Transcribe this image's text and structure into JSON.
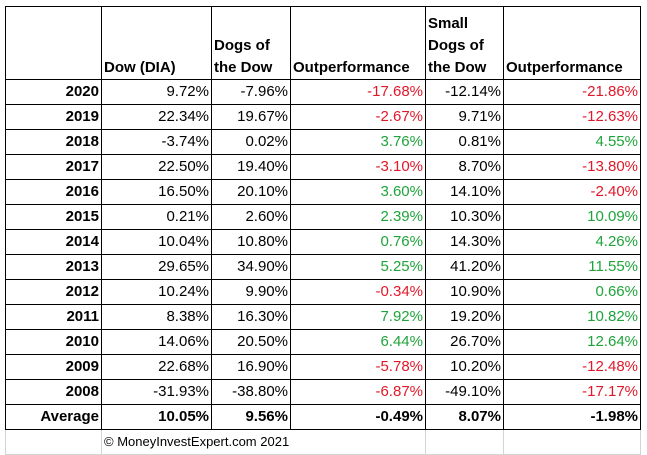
{
  "table": {
    "headers": [
      "",
      "Dow (DIA)",
      "Dogs of the Dow",
      "Outperformance",
      "Small Dogs of the Dow",
      "Outperformance"
    ],
    "header_lines": [
      [
        ""
      ],
      [
        "Dow (DIA)"
      ],
      [
        "Dogs of",
        "the Dow"
      ],
      [
        "Outperformance"
      ],
      [
        "Small",
        "Dogs of",
        "the Dow"
      ],
      [
        "Outperformance"
      ]
    ],
    "rows": [
      {
        "year": "2020",
        "dow": "9.72%",
        "dogs": "-7.96%",
        "out1": "-17.68%",
        "small": "-12.14%",
        "out2": "-21.86%"
      },
      {
        "year": "2019",
        "dow": "22.34%",
        "dogs": "19.67%",
        "out1": "-2.67%",
        "small": "9.71%",
        "out2": "-12.63%"
      },
      {
        "year": "2018",
        "dow": "-3.74%",
        "dogs": "0.02%",
        "out1": "3.76%",
        "small": "0.81%",
        "out2": "4.55%"
      },
      {
        "year": "2017",
        "dow": "22.50%",
        "dogs": "19.40%",
        "out1": "-3.10%",
        "small": "8.70%",
        "out2": "-13.80%"
      },
      {
        "year": "2016",
        "dow": "16.50%",
        "dogs": "20.10%",
        "out1": "3.60%",
        "small": "14.10%",
        "out2": "-2.40%"
      },
      {
        "year": "2015",
        "dow": "0.21%",
        "dogs": "2.60%",
        "out1": "2.39%",
        "small": "10.30%",
        "out2": "10.09%"
      },
      {
        "year": "2014",
        "dow": "10.04%",
        "dogs": "10.80%",
        "out1": "0.76%",
        "small": "14.30%",
        "out2": "4.26%"
      },
      {
        "year": "2013",
        "dow": "29.65%",
        "dogs": "34.90%",
        "out1": "5.25%",
        "small": "41.20%",
        "out2": "11.55%"
      },
      {
        "year": "2012",
        "dow": "10.24%",
        "dogs": "9.90%",
        "out1": "-0.34%",
        "small": "10.90%",
        "out2": "0.66%"
      },
      {
        "year": "2011",
        "dow": "8.38%",
        "dogs": "16.30%",
        "out1": "7.92%",
        "small": "19.20%",
        "out2": "10.82%"
      },
      {
        "year": "2010",
        "dow": "14.06%",
        "dogs": "20.50%",
        "out1": "6.44%",
        "small": "26.70%",
        "out2": "12.64%"
      },
      {
        "year": "2009",
        "dow": "22.68%",
        "dogs": "16.90%",
        "out1": "-5.78%",
        "small": "10.20%",
        "out2": "-12.48%"
      },
      {
        "year": "2008",
        "dow": "-31.93%",
        "dogs": "-38.80%",
        "out1": "-6.87%",
        "small": "-49.10%",
        "out2": "-17.17%"
      }
    ],
    "average": {
      "label": "Average",
      "dow": "10.05%",
      "dogs": "9.56%",
      "out1": "-0.49%",
      "small": "8.07%",
      "out2": "-1.98%"
    }
  },
  "footer": {
    "copyright": "© MoneyInvestExpert.com 2021"
  },
  "colors": {
    "negative": "#e0182a",
    "positive": "#1fa33a"
  }
}
